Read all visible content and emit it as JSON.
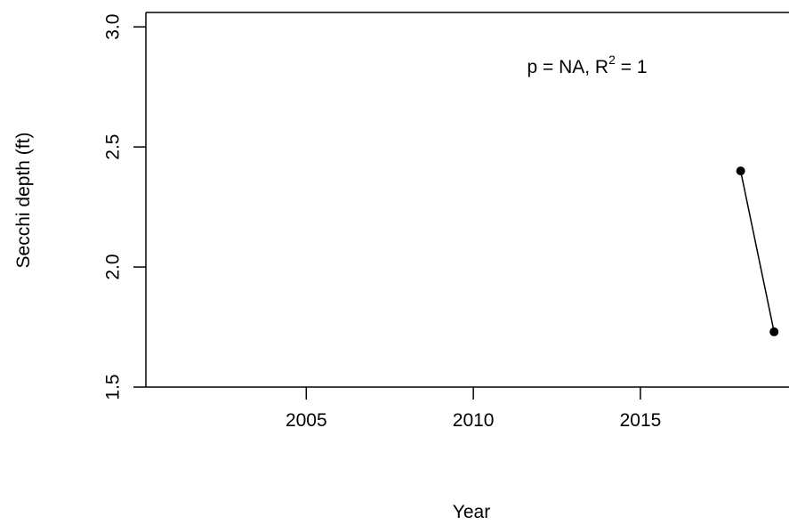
{
  "chart_data": {
    "type": "line",
    "x_label": "Year",
    "y_label": "Secchi depth (ft)",
    "annotation": {
      "text": "p = NA, R",
      "superscript": "2",
      "tail": " = 1"
    },
    "x": [
      2018,
      2019
    ],
    "series": [
      {
        "color": "#000000",
        "values": [
          2.4,
          1.73
        ]
      }
    ],
    "xlim": [
      2000.2,
      2019.5
    ],
    "xticks": [
      2005,
      2010,
      2015
    ],
    "ylim": [
      1.5,
      3.06
    ],
    "yticks": [
      {
        "value": 1.5,
        "label": "1.5"
      },
      {
        "value": 2,
        "label": "2.0"
      },
      {
        "value": 2.5,
        "label": "2.5"
      },
      {
        "value": 3,
        "label": "3.0"
      }
    ]
  }
}
